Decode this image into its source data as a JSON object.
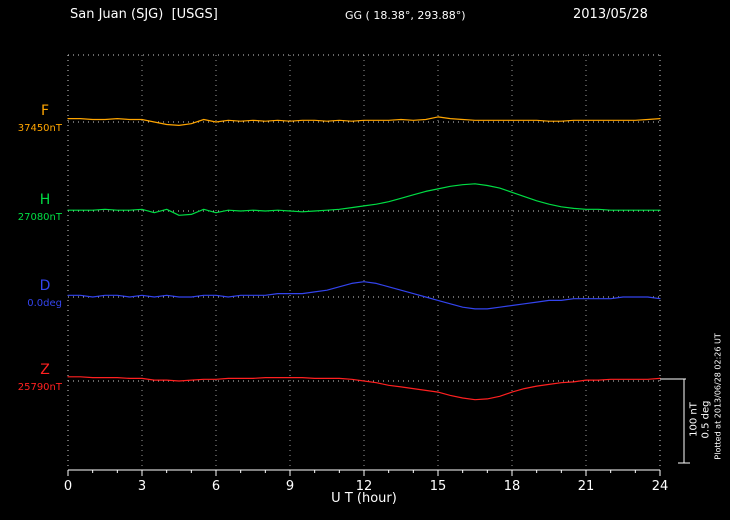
{
  "header": {
    "station": "San Juan (SJG)  [USGS]",
    "coords": "GG ( 18.38°, 293.88°)",
    "date": "2013/05/28"
  },
  "footer": {
    "plotted_at": "Plotted at 2013/06/28 02:26 UT"
  },
  "scale_bar": {
    "nt_label": "100 nT",
    "deg_label": "0.5 deg"
  },
  "chart_data": {
    "type": "line",
    "title": "San Juan (SJG) [USGS] magnetogram 2013/05/28",
    "xlabel": "U T (hour)",
    "x_range": [
      0,
      24
    ],
    "x_ticks": [
      0,
      3,
      6,
      9,
      12,
      15,
      18,
      21,
      24
    ],
    "sample_step_hours": 0.5,
    "grid": "dotted-vertical-every-3h",
    "legend_position": "left-of-each-baseline",
    "scale": {
      "nT_per_div": 100,
      "deg_per_div": 0.5
    },
    "series": [
      {
        "key": "F",
        "label": "F",
        "baseline_label": "37450nT",
        "baseline_value": 37450,
        "unit": "nT",
        "color": "#ffa500",
        "offsets": [
          4,
          4,
          3,
          3,
          4,
          3,
          3,
          0,
          -3,
          -4,
          -2,
          3,
          0,
          2,
          1,
          2,
          1,
          2,
          1,
          2,
          2,
          1,
          2,
          1,
          2,
          2,
          2,
          3,
          2,
          3,
          6,
          4,
          3,
          2,
          2,
          2,
          2,
          2,
          2,
          1,
          1,
          2,
          2,
          2,
          2,
          2,
          2,
          3,
          4
        ]
      },
      {
        "key": "H",
        "label": "H",
        "baseline_label": "27080nT",
        "baseline_value": 27080,
        "unit": "nT",
        "color": "#00dd44",
        "offsets": [
          1,
          1,
          1,
          2,
          1,
          1,
          2,
          -2,
          2,
          -5,
          -4,
          2,
          -2,
          1,
          0,
          1,
          0,
          1,
          0,
          -1,
          0,
          1,
          2,
          4,
          6,
          8,
          11,
          15,
          19,
          23,
          26,
          29,
          31,
          32,
          30,
          27,
          22,
          17,
          12,
          8,
          5,
          3,
          2,
          2,
          1,
          1,
          1,
          1,
          1
        ]
      },
      {
        "key": "D",
        "label": "D",
        "baseline_label": "0.0deg",
        "baseline_value": 0.0,
        "unit": "deg",
        "color": "#3344ee",
        "offsets": [
          0.01,
          0.01,
          0.0,
          0.01,
          0.01,
          0.0,
          0.01,
          0.0,
          0.01,
          0.0,
          0.0,
          0.01,
          0.01,
          0.0,
          0.01,
          0.01,
          0.01,
          0.02,
          0.02,
          0.02,
          0.03,
          0.04,
          0.06,
          0.08,
          0.09,
          0.08,
          0.06,
          0.04,
          0.02,
          0.0,
          -0.02,
          -0.04,
          -0.06,
          -0.07,
          -0.07,
          -0.06,
          -0.05,
          -0.04,
          -0.03,
          -0.02,
          -0.02,
          -0.01,
          -0.01,
          -0.01,
          -0.01,
          0.0,
          0.0,
          0.0,
          -0.01
        ]
      },
      {
        "key": "Z",
        "label": "Z",
        "baseline_label": "25790nT",
        "baseline_value": 25790,
        "unit": "nT",
        "color": "#ff2020",
        "offsets": [
          5,
          5,
          4,
          4,
          4,
          3,
          3,
          1,
          1,
          0,
          1,
          2,
          2,
          3,
          3,
          3,
          4,
          4,
          4,
          4,
          3,
          3,
          3,
          2,
          0,
          -2,
          -5,
          -7,
          -9,
          -11,
          -13,
          -17,
          -20,
          -22,
          -21,
          -18,
          -13,
          -9,
          -6,
          -4,
          -2,
          -1,
          1,
          1,
          2,
          2,
          2,
          2,
          3
        ]
      }
    ]
  }
}
